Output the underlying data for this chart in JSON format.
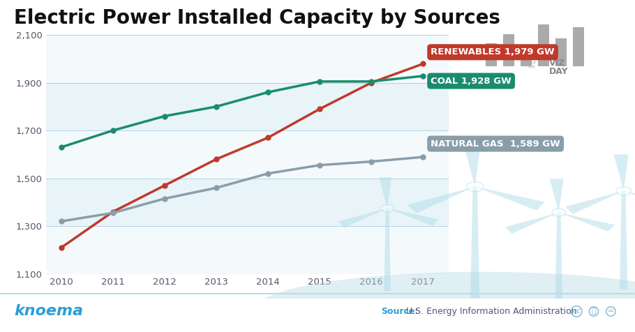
{
  "title": "Electric Power Installed Capacity by Sources",
  "title_fontsize": 20,
  "background_color": "#ffffff",
  "plot_bg_color": "#e8f4f8",
  "years": [
    2010,
    2011,
    2012,
    2013,
    2014,
    2015,
    2016,
    2017
  ],
  "renewables": [
    1210,
    1360,
    1470,
    1580,
    1670,
    1790,
    1900,
    1979
  ],
  "coal": [
    1630,
    1700,
    1760,
    1800,
    1860,
    1905,
    1905,
    1928
  ],
  "natural_gas": [
    1320,
    1355,
    1415,
    1460,
    1520,
    1555,
    1570,
    1589
  ],
  "renewables_color": "#c0392b",
  "coal_color": "#1a8c6e",
  "natural_gas_color": "#8a9eaa",
  "ylim": [
    1100,
    2100
  ],
  "yticks": [
    1100,
    1300,
    1500,
    1700,
    1900,
    2100
  ],
  "renewables_label": "RENEWABLES 1,979 GW",
  "coal_label": "COAL 1,928 GW",
  "natural_gas_label": "NATURAL GAS  1,589 GW",
  "source_label": "Source:",
  "source_text": " U.S. Energy Information Administration",
  "brand_text": "knoema",
  "line_width": 2.5,
  "marker_size": 5,
  "stripe_color": "#cce5ef",
  "bottom_bg": "#ffffff",
  "knoema_color": "#2b9fd6",
  "source_bold_color": "#2b9fd6",
  "source_color": "#555577"
}
